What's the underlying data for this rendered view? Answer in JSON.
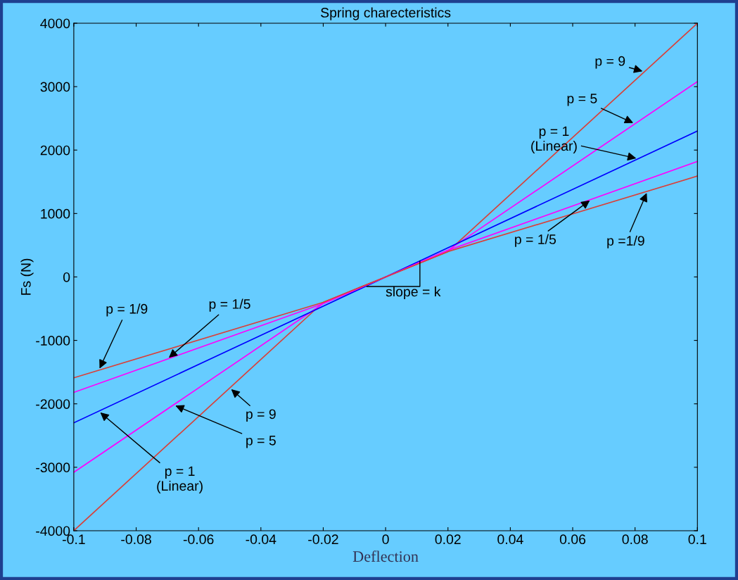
{
  "chart_data": {
    "type": "line",
    "title": "Spring charecteristics",
    "xlabel": "Deflection",
    "ylabel": "Fs (N)",
    "x": [
      -0.1,
      -0.02,
      0,
      0.02,
      0.1
    ],
    "series": [
      {
        "color": "#d9403a",
        "values": [
          -4000,
          -400,
          0,
          400,
          4000
        ]
      },
      {
        "color": "#ff00ff",
        "values": [
          -3080,
          -420,
          0,
          420,
          3080
        ]
      },
      {
        "color": "#0000ff",
        "values": [
          -2300,
          -460,
          0,
          460,
          2300
        ]
      },
      {
        "color": "#ff00ff",
        "values": [
          -1820,
          -420,
          0,
          420,
          1820
        ]
      },
      {
        "color": "#d9403a",
        "values": [
          -1590,
          -400,
          0,
          400,
          1590
        ]
      }
    ],
    "xlim": [
      -0.1,
      0.1
    ],
    "ylim": [
      -4000,
      4000
    ],
    "xticks": [
      -0.1,
      -0.08,
      -0.06,
      -0.04,
      -0.02,
      0,
      0.02,
      0.04,
      0.06,
      0.08,
      0.1
    ],
    "yticks": [
      -4000,
      -3000,
      -2000,
      -1000,
      0,
      1000,
      2000,
      3000,
      4000
    ],
    "grid": false,
    "legend": false,
    "marker": "none",
    "line_style": "solid",
    "annotations": [
      {
        "text": "p = 9",
        "x": 0.083,
        "y": 3235
      },
      {
        "text": "p = 5",
        "x": 0.08,
        "y": 2415
      },
      {
        "text": "p = 1\n(Linear)",
        "x": 0.081,
        "y": 1863
      },
      {
        "text": "p = 1/5",
        "x": 0.066,
        "y": 1225
      },
      {
        "text": "p =1/9",
        "x": 0.084,
        "y": 1352
      },
      {
        "text": "p = 1/9",
        "x": -0.092,
        "y": -1471
      },
      {
        "text": "p = 1/5",
        "x": -0.07,
        "y": -1295
      },
      {
        "text": "p = 9",
        "x": -0.05,
        "y": -1750
      },
      {
        "text": "p = 5",
        "x": -0.068,
        "y": -2016
      },
      {
        "text": "p = 1\n(Linear)",
        "x": -0.092,
        "y": -2116
      },
      "slope = k"
    ]
  }
}
